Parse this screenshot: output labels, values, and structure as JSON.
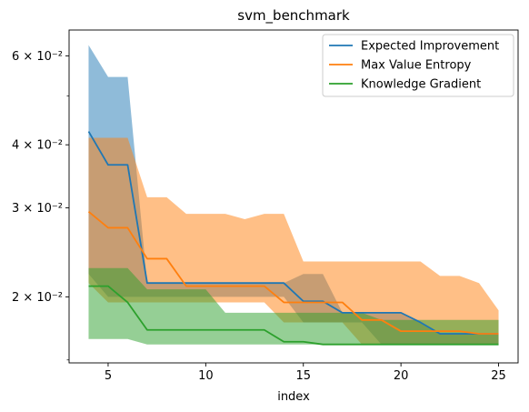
{
  "chart_data": {
    "type": "line",
    "title": "svm_benchmark",
    "xlabel": "index",
    "ylabel": "",
    "yscale": "log",
    "xlim": [
      3,
      26
    ],
    "ylim": [
      0.0148,
      0.0675
    ],
    "xticks": [
      5,
      10,
      15,
      20,
      25
    ],
    "yticks": [
      {
        "value": 0.02,
        "label": "2 × 10⁻²"
      },
      {
        "value": 0.03,
        "label": "3 × 10⁻²"
      },
      {
        "value": 0.04,
        "label": "4 × 10⁻²"
      },
      {
        "value": 0.06,
        "label": "6 × 10⁻²"
      }
    ],
    "legend_position": "top-right",
    "grid": false,
    "x": [
      4,
      5,
      6,
      7,
      8,
      9,
      10,
      11,
      12,
      13,
      14,
      15,
      16,
      17,
      18,
      19,
      20,
      21,
      22,
      23,
      24,
      25
    ],
    "series": [
      {
        "name": "Expected Improvement",
        "color": "#1f77b4",
        "mean": [
          0.0425,
          0.0365,
          0.0365,
          0.0213,
          0.0213,
          0.0213,
          0.0213,
          0.0213,
          0.0213,
          0.0213,
          0.0213,
          0.0196,
          0.0196,
          0.0186,
          0.0186,
          0.0186,
          0.0186,
          0.0178,
          0.0169,
          0.0169,
          0.0169,
          0.0169
        ],
        "upper": [
          0.063,
          0.0545,
          0.0545,
          0.0213,
          0.0213,
          0.0213,
          0.0213,
          0.0213,
          0.0213,
          0.0213,
          0.0213,
          0.0222,
          0.0222,
          0.0186,
          0.0186,
          0.0186,
          0.0186,
          0.0178,
          0.0169,
          0.0169,
          0.0169,
          0.0169
        ],
        "lower": [
          0.0222,
          0.02,
          0.02,
          0.02,
          0.02,
          0.02,
          0.02,
          0.02,
          0.02,
          0.02,
          0.02,
          0.0178,
          0.0178,
          0.0178,
          0.0178,
          0.0161,
          0.0161,
          0.0161,
          0.0161,
          0.0161,
          0.0161,
          0.0161
        ]
      },
      {
        "name": "Max Value Entropy",
        "color": "#ff7f0e",
        "mean": [
          0.0295,
          0.0274,
          0.0274,
          0.0238,
          0.0238,
          0.021,
          0.021,
          0.021,
          0.021,
          0.021,
          0.0195,
          0.0195,
          0.0195,
          0.0195,
          0.018,
          0.018,
          0.0171,
          0.0171,
          0.0171,
          0.0171,
          0.0169,
          0.0169
        ],
        "upper": [
          0.0413,
          0.0413,
          0.0413,
          0.0315,
          0.0315,
          0.0292,
          0.0292,
          0.0292,
          0.0285,
          0.0292,
          0.0292,
          0.0235,
          0.0235,
          0.0235,
          0.0235,
          0.0235,
          0.0235,
          0.0235,
          0.022,
          0.022,
          0.0213,
          0.0188
        ],
        "lower": [
          0.0213,
          0.0195,
          0.0195,
          0.0195,
          0.0195,
          0.0195,
          0.0195,
          0.0195,
          0.0195,
          0.0195,
          0.0178,
          0.0178,
          0.0178,
          0.0178,
          0.0161,
          0.0161,
          0.0161,
          0.0161,
          0.0161,
          0.0161,
          0.0161,
          0.0161
        ]
      },
      {
        "name": "Knowledge Gradient",
        "color": "#2ca02c",
        "mean": [
          0.021,
          0.021,
          0.0195,
          0.0172,
          0.0172,
          0.0172,
          0.0172,
          0.0172,
          0.0172,
          0.0172,
          0.0163,
          0.0163,
          0.0161,
          0.0161,
          0.0161,
          0.0161,
          0.0161,
          0.0161,
          0.0161,
          0.0161,
          0.0161,
          0.0161
        ],
        "upper": [
          0.0228,
          0.0228,
          0.0228,
          0.0207,
          0.0207,
          0.0207,
          0.0207,
          0.0186,
          0.0186,
          0.0186,
          0.0186,
          0.0186,
          0.0186,
          0.0186,
          0.0186,
          0.018,
          0.018,
          0.018,
          0.018,
          0.018,
          0.018,
          0.018
        ],
        "lower": [
          0.0165,
          0.0165,
          0.0165,
          0.0161,
          0.0161,
          0.0161,
          0.0161,
          0.0161,
          0.0161,
          0.0161,
          0.0161,
          0.0161,
          0.0161,
          0.0161,
          0.0161,
          0.0161,
          0.0161,
          0.0161,
          0.0161,
          0.0161,
          0.0161,
          0.0161
        ]
      }
    ]
  }
}
